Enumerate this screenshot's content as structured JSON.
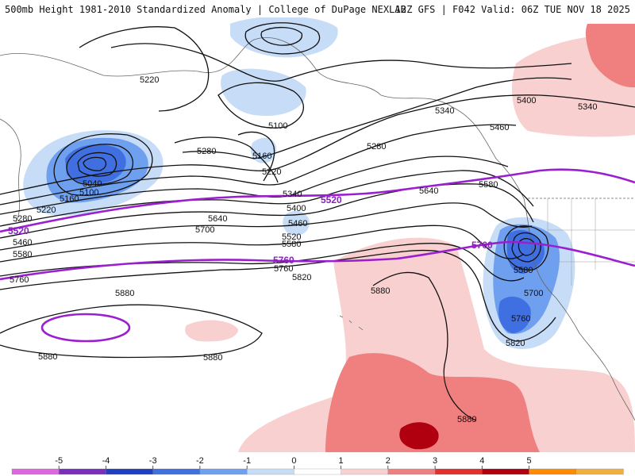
{
  "header": {
    "title_left": "500mb Height 1981-2010 Standardized Anomaly | College of DuPage NEXLAB",
    "title_right": "12Z GFS | F042 Valid: 06Z TUE NOV 18 2025"
  },
  "contour_labels": {
    "h5220_a": "5220",
    "h5100_a": "5100",
    "h5160_a": "5160",
    "h5220_b": "5220",
    "h5280_a": "5280",
    "h5040": "5040",
    "h5100_b": "5100",
    "h5160_b": "5160",
    "h5220_c": "5220",
    "h5280_b": "5280",
    "h5460_a": "5460",
    "h5580_a": "5580",
    "h5760_a": "5760",
    "h5280_c": "5280",
    "h5340_a": "5340",
    "h5400_a": "5400",
    "h5460_b": "5460",
    "h5520_a": "5520",
    "h5580_b": "5580",
    "h5640_a": "5640",
    "h5700_a": "5700",
    "h5760_b": "5760",
    "h5820_a": "5820",
    "h5880_a": "5880",
    "h5880_b": "5880",
    "h5880_c": "5880",
    "h5880_d": "5880",
    "h5340_b": "5340",
    "h5400_b": "5400",
    "h5460_c": "5460",
    "h5640_b": "5640",
    "h5580_c": "5580",
    "h5340_c": "5340",
    "h5580_d": "5580",
    "h5700_b": "5700",
    "h5760_c": "5760",
    "h5820_b": "5820",
    "h5880_e": "5880"
  },
  "highlight_labels": {
    "p5520_west": "5520",
    "p5520_center": "5520",
    "p5760_center": "5760",
    "p5760_east": "5760"
  },
  "legend": {
    "ticks": [
      "-5",
      "-4",
      "-3",
      "-2",
      "-1",
      "0",
      "1",
      "2",
      "3",
      "4",
      "5"
    ],
    "colors": [
      "#e066e0",
      "#7b2fbf",
      "#1f3fbf",
      "#3f6fe0",
      "#6f9fef",
      "#c6dcf7",
      "#ffffff",
      "#f8d0d0",
      "#f08080",
      "#e03030",
      "#b00010",
      "#ff8c00",
      "#f0b040"
    ]
  },
  "colors": {
    "neg_light": "#c6dcf7",
    "neg_mid": "#6f9fef",
    "neg_strong": "#3f6fe0",
    "neg_deep": "#1f3fbf",
    "pos_light": "#f8d0d0",
    "pos_mid": "#f08080",
    "pos_strong": "#e03030",
    "pos_deep": "#b00010",
    "highlight_contour": "#9b1fcf"
  }
}
